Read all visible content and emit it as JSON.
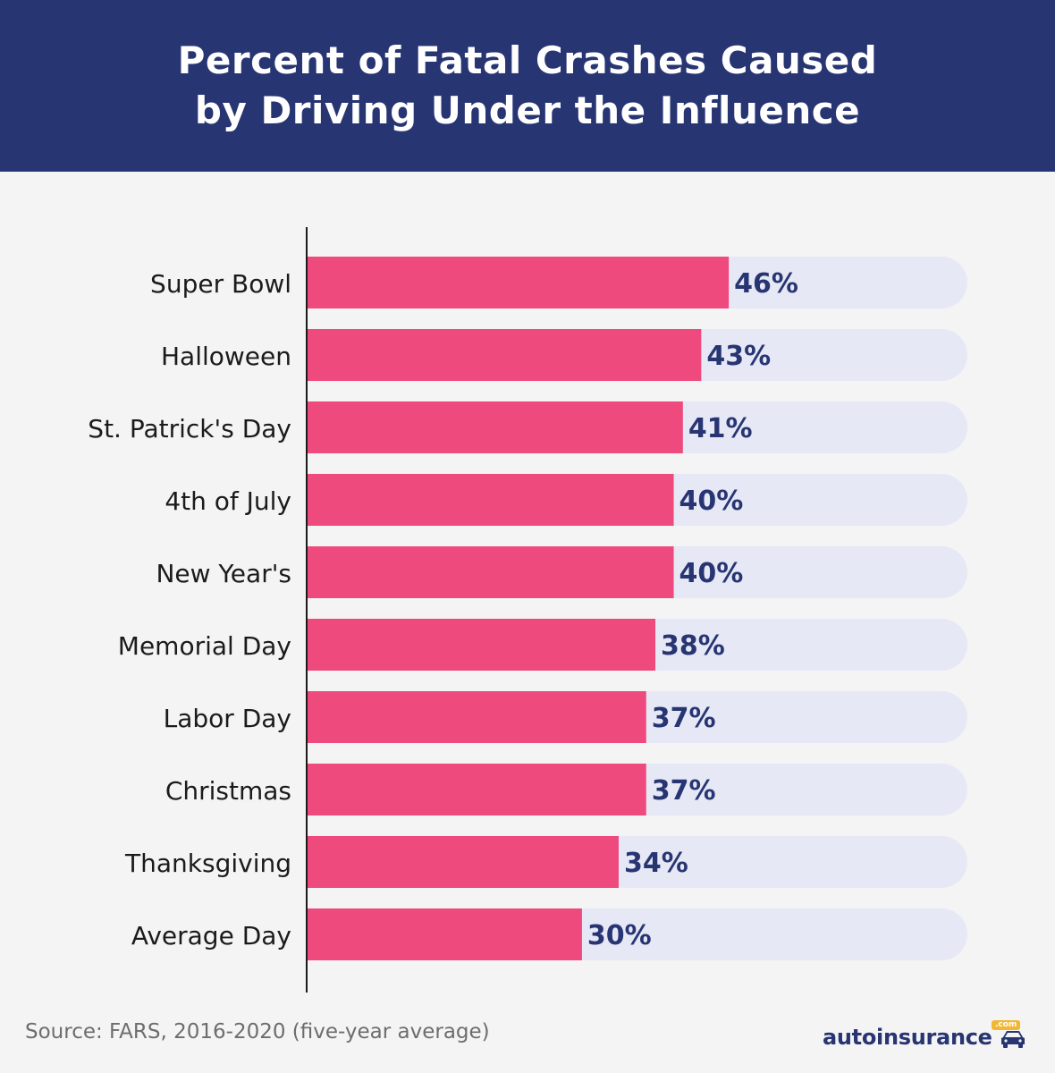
{
  "header": {
    "title_line1": "Percent of Fatal Crashes Caused",
    "title_line2": "by Driving Under the Influence"
  },
  "chart_data": {
    "type": "bar",
    "orientation": "horizontal",
    "title": "Percent of Fatal Crashes Caused by Driving Under the Influence",
    "categories": [
      "Super Bowl",
      "Halloween",
      "St. Patrick's Day",
      "4th of July",
      "New Year's",
      "Memorial Day",
      "Labor Day",
      "Christmas",
      "Thanksgiving",
      "Average Day"
    ],
    "values": [
      46,
      43,
      41,
      40,
      40,
      38,
      37,
      37,
      34,
      30
    ],
    "value_labels": [
      "46%",
      "43%",
      "41%",
      "40%",
      "40%",
      "38%",
      "37%",
      "37%",
      "34%",
      "30%"
    ],
    "xlim": [
      0,
      72
    ],
    "xlabel": "",
    "ylabel": "",
    "grid": false,
    "colors": {
      "bar": "#ef4a7d",
      "track": "#e6e8f5",
      "value_label": "#283573",
      "category_label": "#1b1b1b"
    }
  },
  "footer": {
    "source": "Source: FARS, 2016-2020 (five-year average)",
    "logo_text": "autoinsurance",
    "logo_badge": ".com"
  },
  "logo": {
    "icon": "car-icon",
    "brand_color": "#283573",
    "badge_color": "#f2b731"
  }
}
